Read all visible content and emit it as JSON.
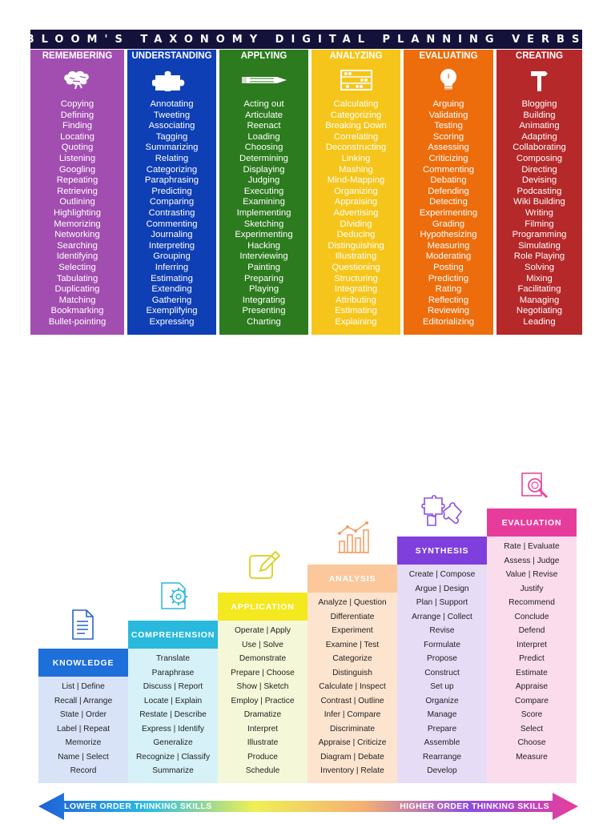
{
  "poster": {
    "title": "BLOOM'S TAXONOMY DIGITAL PLANNING VERBS",
    "columns": [
      {
        "heading": "REMEMBERING",
        "color": "#a24eb0",
        "icon": "brain-icon",
        "verbs": [
          "Copying",
          "Defining",
          "Finding",
          "Locating",
          "Quoting",
          "Listening",
          "Googling",
          "Repeating",
          "Retrieving",
          "Outlining",
          "Highlighting",
          "Memorizing",
          "Networking",
          "Searching",
          "Identifying",
          "Selecting",
          "Tabulating",
          "Duplicating",
          "Matching",
          "Bookmarking",
          "Bullet-pointing"
        ]
      },
      {
        "heading": "UNDERSTANDING",
        "color": "#0f3fb5",
        "icon": "puzzle-piece-icon",
        "verbs": [
          "Annotating",
          "Tweeting",
          "Associating",
          "Tagging",
          "Summarizing",
          "Relating",
          "Categorizing",
          "Paraphrasing",
          "Predicting",
          "Comparing",
          "Contrasting",
          "Commenting",
          "Journaling",
          "Interpreting",
          "Grouping",
          "Inferring",
          "Estimating",
          "Extending",
          "Gathering",
          "Exemplifying",
          "Expressing"
        ]
      },
      {
        "heading": "APPLYING",
        "color": "#2d7b1f",
        "icon": "pencil-icon",
        "verbs": [
          "Acting out",
          "Articulate",
          "Reenact",
          "Loading",
          "Choosing",
          "Determining",
          "Displaying",
          "Judging",
          "Executing",
          "Examining",
          "Implementing",
          "Sketching",
          "Experimenting",
          "Hacking",
          "Interviewing",
          "Painting",
          "Preparing",
          "Playing",
          "Integrating",
          "Presenting",
          "Charting"
        ]
      },
      {
        "heading": "ANALYZING",
        "color": "#f6c51b",
        "icon": "abacus-icon",
        "verbs": [
          "Calculating",
          "Categorizing",
          "Breaking Down",
          "Correlating",
          "Deconstructing",
          "Linking",
          "Mashing",
          "Mind-Mapping",
          "Organizing",
          "Appraising",
          "Advertising",
          "Dividing",
          "Deducing",
          "Distinguishing",
          "Illustrating",
          "Questioning",
          "Structuring",
          "Integrating",
          "Attributing",
          "Estimating",
          "Explaining"
        ]
      },
      {
        "heading": "EVALUATING",
        "color": "#ed6d0c",
        "icon": "lightbulb-icon",
        "verbs": [
          "Arguing",
          "Validating",
          "Testing",
          "Scoring",
          "Assessing",
          "Criticizing",
          "Commenting",
          "Debating",
          "Defending",
          "Detecting",
          "Experimenting",
          "Grading",
          "Hypothesizing",
          "Measuring",
          "Moderating",
          "Posting",
          "Predicting",
          "Rating",
          "Reflecting",
          "Reviewing",
          "Editorializing"
        ]
      },
      {
        "heading": "CREATING",
        "color": "#b5292a",
        "icon": "hammer-icon",
        "verbs": [
          "Blogging",
          "Building",
          "Animating",
          "Adapting",
          "Collaborating",
          "Composing",
          "Directing",
          "Devising",
          "Podcasting",
          "Wiki Building",
          "Writing",
          "Filming",
          "Programming",
          "Simulating",
          "Role Playing",
          "Solving",
          "Mixing",
          "Facilitating",
          "Managing",
          "Negotiating",
          "Leading"
        ]
      }
    ]
  },
  "staircase": {
    "steps": [
      {
        "heading": "KNOWLEDGE",
        "head_color": "#1e6fd9",
        "body_color": "#d8e3f8",
        "icon": "document-icon",
        "verbs": [
          "List | Define",
          "Recall | Arrange",
          "State  | Order",
          "Label  |  Repeat",
          "Memorize",
          "Name  |  Select",
          "Record"
        ]
      },
      {
        "heading": "COMPREHENSION",
        "head_color": "#29b9dc",
        "body_color": "#d6f2f8",
        "icon": "gear-icon",
        "verbs": [
          "Translate",
          "Paraphrase",
          "Discuss | Report",
          "Locate | Explain",
          "Restate | Describe",
          "Express | Identify",
          "Generalize",
          "Recognize | Classify",
          "Summarize"
        ]
      },
      {
        "heading": "APPLICATION",
        "head_color": "#f4e81f",
        "body_color": "#f5f8d8",
        "icon": "edit-icon",
        "verbs": [
          "Operate | Apply",
          "Use | Solve",
          "Demonstrate",
          "Prepare | Choose",
          "Show | Sketch",
          "Employ | Practice",
          "Dramatize",
          "Interpret",
          "Illustrate",
          "Produce",
          "Schedule"
        ]
      },
      {
        "heading": "ANALYSIS",
        "head_color": "#fbc79b",
        "body_color": "#fde4cf",
        "icon": "bar-chart-icon",
        "verbs": [
          "Analyze | Question",
          "Differentiate",
          "Experiment",
          "Examine | Test",
          "Categorize",
          "Distinguish",
          "Calculate | Inspect",
          "Contrast | Outline",
          "Infer | Compare",
          "Discriminate",
          "Appraise | Criticize",
          "Diagram | Debate",
          "Inventory | Relate"
        ]
      },
      {
        "heading": "SYNTHESIS",
        "head_color": "#7f3fdc",
        "body_color": "#e6dcf6",
        "icon": "puzzle-icon",
        "verbs": [
          "Create  |  Compose",
          "Argue  |  Design",
          "Plan  |  Support",
          "Arrange | Collect",
          "Revise",
          "Formulate",
          "Propose",
          "Construct",
          "Set up",
          "Organize",
          "Manage",
          "Prepare",
          "Assemble",
          "Rearrange",
          "Develop"
        ]
      },
      {
        "heading": "EVALUATION",
        "head_color": "#e83c9d",
        "body_color": "#fbdcec",
        "icon": "magnifier-icon",
        "verbs": [
          "Rate | Evaluate",
          "Assess | Judge",
          "Value | Revise",
          "Justify",
          "Recommend",
          "Conclude",
          "Defend",
          "Interpret",
          "Predict",
          "Estimate",
          "Appraise",
          "Compare",
          "Score",
          "Select",
          "Choose",
          "Measure"
        ]
      }
    ],
    "arrow": {
      "left_label": "LOWER ORDER THINKING SKILLS",
      "right_label": "HIGHER ORDER THINKING SKILLS"
    }
  }
}
